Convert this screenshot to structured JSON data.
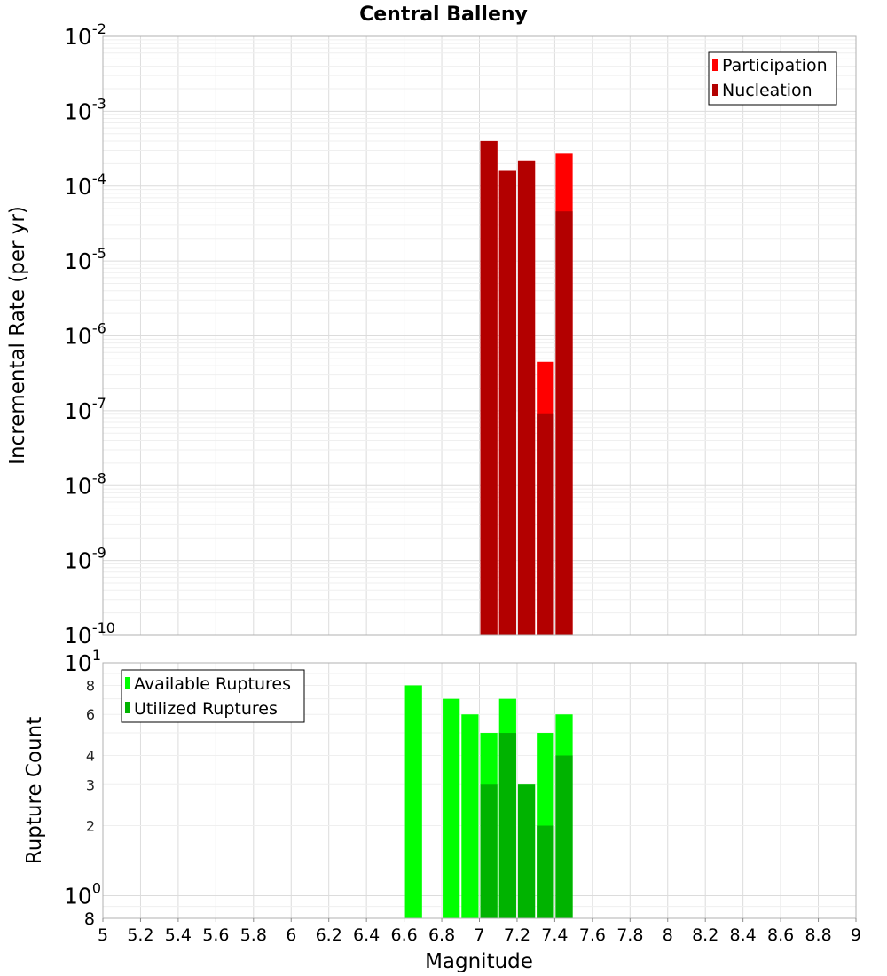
{
  "chart_data": [
    {
      "type": "bar",
      "title": "Central Balleny",
      "xlabel": "",
      "ylabel": "Incremental Rate (per yr)",
      "yscale": "log",
      "xlim": [
        5,
        9
      ],
      "ylim": [
        1e-10,
        0.01
      ],
      "y_ticks": [
        {
          "exp": "-2",
          "value": 0.01
        },
        {
          "exp": "-3",
          "value": 0.001
        },
        {
          "exp": "-4",
          "value": 0.0001
        },
        {
          "exp": "-5",
          "value": 1e-05
        },
        {
          "exp": "-6",
          "value": 1e-06
        },
        {
          "exp": "-7",
          "value": 1e-07
        },
        {
          "exp": "-8",
          "value": 1e-08
        },
        {
          "exp": "-9",
          "value": 1e-09
        },
        {
          "exp": "-10",
          "value": 1e-10
        }
      ],
      "bin_width": 0.1,
      "legend_position": "top-right",
      "series": [
        {
          "name": "Participation",
          "color": "#ff0000",
          "x": [
            7.05,
            7.15,
            7.25,
            7.35,
            7.45
          ],
          "values": [
            0.0004,
            0.00016,
            0.00022,
            4.5e-07,
            0.00027
          ]
        },
        {
          "name": "Nucleation",
          "color": "#b30000",
          "x": [
            7.05,
            7.15,
            7.25,
            7.35,
            7.45
          ],
          "values": [
            0.0004,
            0.00016,
            0.00022,
            9e-08,
            4.6e-05
          ]
        }
      ]
    },
    {
      "type": "bar",
      "title": "",
      "xlabel": "Magnitude",
      "ylabel": "Rupture Count",
      "yscale": "log",
      "xlim": [
        5,
        9
      ],
      "ylim": [
        0.8,
        10
      ],
      "x_ticks": [
        "5",
        "5.2",
        "5.4",
        "5.6",
        "5.8",
        "6",
        "6.2",
        "6.4",
        "6.6",
        "6.8",
        "7",
        "7.2",
        "7.4",
        "7.6",
        "7.8",
        "8",
        "8.2",
        "8.4",
        "8.6",
        "8.8",
        "9"
      ],
      "y_major_ticks": [
        {
          "exp": "1",
          "value": 10
        },
        {
          "exp": "0",
          "value": 1
        }
      ],
      "y_minor_ticks": [
        "8",
        "6",
        "4",
        "3",
        "2"
      ],
      "y_bottom_label": "8",
      "bin_width": 0.1,
      "legend_position": "top-left",
      "series": [
        {
          "name": "Available Ruptures",
          "color": "#00ff00",
          "x": [
            6.65,
            6.85,
            6.95,
            7.05,
            7.15,
            7.25,
            7.35,
            7.45
          ],
          "values": [
            8,
            7,
            6,
            5,
            7,
            3,
            5,
            6
          ]
        },
        {
          "name": "Utilized Ruptures",
          "color": "#00b300",
          "x": [
            7.05,
            7.15,
            7.25,
            7.35,
            7.45
          ],
          "values": [
            3,
            5,
            3,
            2,
            4
          ]
        }
      ]
    }
  ]
}
